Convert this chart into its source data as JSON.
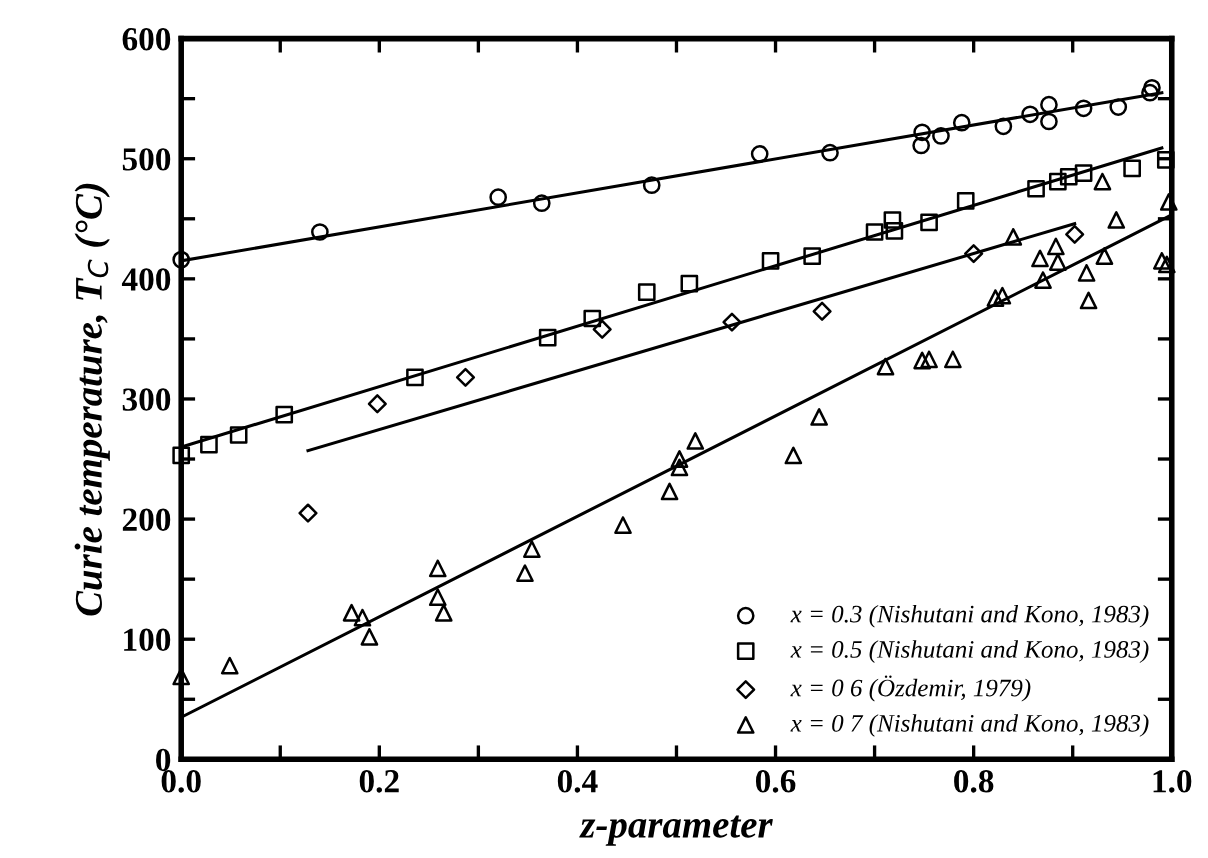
{
  "chart_data": {
    "type": "scatter",
    "xlabel": "z-parameter",
    "ylabel": "Curie temperature, T$_{C}$ (°C)",
    "xlim": [
      0,
      1
    ],
    "ylim": [
      0,
      600
    ],
    "xticks": [
      {
        "value": 0,
        "label": "0.0"
      },
      {
        "value": 0.1,
        "label": null
      },
      {
        "value": 0.2,
        "label": "0.2"
      },
      {
        "value": 0.3,
        "label": null
      },
      {
        "value": 0.4,
        "label": "0.4"
      },
      {
        "value": 0.5,
        "label": null
      },
      {
        "value": 0.6,
        "label": "0.6"
      },
      {
        "value": 0.7,
        "label": null
      },
      {
        "value": 0.8,
        "label": "0.8"
      },
      {
        "value": 0.9,
        "label": null
      },
      {
        "value": 1,
        "label": "1.0"
      }
    ],
    "yticks": [
      0,
      {
        "value": 50,
        "label": null
      },
      100,
      {
        "value": 150,
        "label": null
      },
      200,
      {
        "value": 250,
        "label": null
      },
      300,
      {
        "value": 350,
        "label": null
      },
      400,
      {
        "value": 450,
        "label": null
      },
      500,
      {
        "value": 550,
        "label": null
      },
      600
    ],
    "grid": false,
    "legend": "bottom right",
    "series": [
      {
        "name": "x = 0.3 (Nishutani and Kono, 1983)",
        "color": "#000000",
        "marker": "circle",
        "x": [
          0.0,
          0.14,
          0.32,
          0.364,
          0.475,
          0.584,
          0.655,
          0.747,
          0.748,
          0.767,
          0.788,
          0.83,
          0.857,
          0.876,
          0.876,
          0.911,
          0.946,
          0.978,
          0.98
        ],
        "values": [
          416,
          439,
          468,
          463,
          478,
          504,
          505,
          511,
          522,
          519,
          530,
          527,
          537,
          545,
          531,
          542,
          543,
          555,
          559
        ]
      },
      {
        "name": "x = 0.5 (Nishutani and Kono, 1983)",
        "color": "#000000",
        "marker": "square",
        "x": [
          0.0,
          0.028,
          0.058,
          0.104,
          0.236,
          0.37,
          0.415,
          0.47,
          0.513,
          0.595,
          0.637,
          0.7,
          0.718,
          0.72,
          0.755,
          0.792,
          0.863,
          0.885,
          0.896,
          0.911,
          0.96,
          0.994
        ],
        "values": [
          253,
          262,
          270,
          287,
          318,
          351,
          367,
          389,
          396,
          415,
          419,
          439,
          449,
          440,
          447,
          465,
          475,
          481,
          485,
          488,
          492,
          499
        ]
      },
      {
        "name": "x = 0 6 (Özdemir, 1979)",
        "color": "#000000",
        "marker": "diamond",
        "x": [
          0.128,
          0.198,
          0.287,
          0.425,
          0.556,
          0.647,
          0.8,
          0.902
        ],
        "values": [
          205,
          296,
          318,
          358,
          364,
          373,
          421,
          437
        ]
      },
      {
        "name": "x = 0 7 (Nishutani and Kono, 1983)",
        "color": "#000000",
        "marker": "triangle",
        "x": [
          0.0,
          0.049,
          0.172,
          0.183,
          0.19,
          0.259,
          0.259,
          0.265,
          0.347,
          0.354,
          0.446,
          0.493,
          0.503,
          0.503,
          0.519,
          0.618,
          0.644,
          0.711,
          0.748,
          0.755,
          0.779,
          0.822,
          0.829,
          0.84,
          0.867,
          0.87,
          0.883,
          0.885,
          0.914,
          0.916,
          0.93,
          0.932,
          0.944,
          0.99,
          0.995,
          0.997
        ],
        "values": [
          69,
          78,
          122,
          118,
          102,
          159,
          135,
          122,
          155,
          175,
          195,
          223,
          250,
          243,
          265,
          253,
          285,
          327,
          332,
          333,
          333,
          384,
          386,
          435,
          417,
          399,
          427,
          414,
          405,
          382,
          481,
          419,
          449,
          415,
          412,
          464
        ]
      },
      {
        "type": "line",
        "color": "#000000",
        "marker": "none",
        "x": [
          0,
          0.99
        ],
        "values": [
          415,
          555
        ]
      },
      {
        "type": "line",
        "color": "#000000",
        "marker": "none",
        "x": [
          0,
          0.99
        ],
        "values": [
          260,
          509
        ]
      },
      {
        "type": "line",
        "color": "#000000",
        "marker": "none",
        "x": [
          0.128,
          0.902
        ],
        "values": [
          257,
          446
        ]
      },
      {
        "type": "line",
        "color": "#000000",
        "marker": "none",
        "x": [
          0,
          0.997
        ],
        "values": [
          35,
          452
        ]
      }
    ]
  }
}
